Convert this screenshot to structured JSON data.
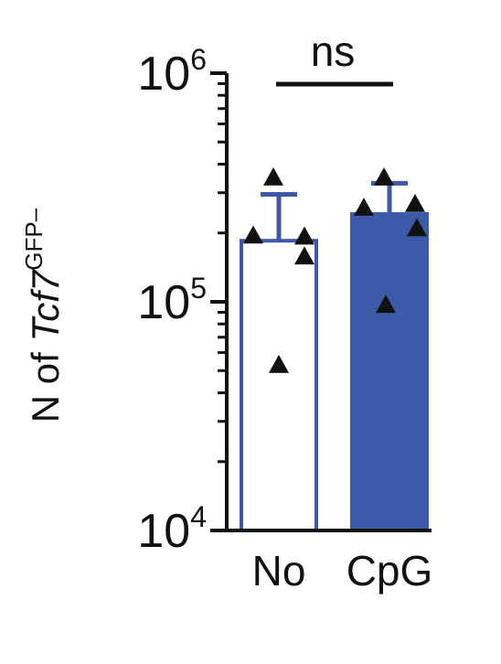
{
  "chart_data": {
    "type": "bar",
    "ylabel": {
      "prefix": "N of ",
      "gene": "Tcf7",
      "superscript": "GFP–"
    },
    "yscale": "log",
    "ylim": [
      10000,
      1000000
    ],
    "yticks": [
      {
        "value": 10000,
        "base": "10",
        "exp": "4"
      },
      {
        "value": 100000,
        "base": "10",
        "exp": "5"
      },
      {
        "value": 1000000,
        "base": "10",
        "exp": "6"
      }
    ],
    "categories": [
      "No",
      "CpG"
    ],
    "bars": [
      {
        "category": "No",
        "mean": 185000,
        "error_upper": 295000,
        "fill": "#ffffff",
        "stroke": "#3d5aa8",
        "points": [
          350000,
          195000,
          193000,
          158000,
          53000
        ]
      },
      {
        "category": "CpG",
        "mean": 242000,
        "error_upper": 330000,
        "fill": "#3d5aa8",
        "stroke": "#3d5aa8",
        "points": [
          350000,
          258000,
          268000,
          210000,
          97000
        ]
      }
    ],
    "significance": {
      "label": "ns",
      "between": [
        "No",
        "CpG"
      ]
    },
    "grid": false,
    "legend": "none"
  }
}
